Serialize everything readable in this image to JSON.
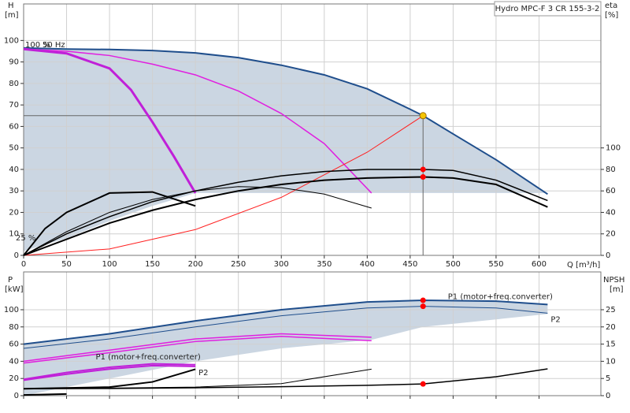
{
  "chart_data": [
    {
      "type": "line",
      "product": "Hydro MPC-F 3 CR 155-3-2",
      "y_label": "H",
      "y_unit": "[m]",
      "y2_label": "eta",
      "y2_unit": "[%]",
      "x_label": "Q [m³/h]",
      "annotations": [
        "100 %",
        "50 Hz",
        "25 %"
      ],
      "xlim": [
        0,
        672
      ],
      "xticks": [
        0,
        50,
        100,
        150,
        200,
        250,
        300,
        350,
        400,
        450,
        500,
        550,
        600
      ],
      "show_xtick_labels": true,
      "ylim": [
        0,
        117
      ],
      "yticks": [
        0,
        10,
        20,
        30,
        40,
        50,
        60,
        70,
        80,
        90,
        100
      ],
      "y2lim": [
        0,
        234
      ],
      "y2ticks": [
        0,
        20,
        40,
        60,
        80,
        100
      ],
      "grid": true,
      "shade_color": "#cbd6e2",
      "shade": {
        "upper_series": 0,
        "x": [
          0,
          50,
          100,
          150,
          200,
          610
        ],
        "values": [
          2,
          8,
          16,
          23,
          29,
          29
        ]
      },
      "duty_point": {
        "x": 465,
        "y": 65,
        "color": "#f5c400"
      },
      "series": [
        {
          "color": "#1f4e8c",
          "width": 2,
          "x": [
            0,
            50,
            100,
            150,
            200,
            250,
            300,
            350,
            400,
            450,
            465,
            500,
            550,
            610
          ],
          "values": [
            96.5,
            96,
            95.8,
            95.3,
            94.2,
            92,
            88.5,
            84,
            77.5,
            68,
            65,
            56.5,
            44.5,
            28.5
          ]
        },
        {
          "color": "#e020e0",
          "width": 1.5,
          "x": [
            0,
            50,
            100,
            150,
            200,
            250,
            300,
            350,
            405
          ],
          "values": [
            96,
            95,
            93,
            89,
            84,
            76.5,
            66,
            52,
            29
          ]
        },
        {
          "color": "#c020d8",
          "width": 3,
          "x": [
            0,
            50,
            100,
            125,
            150,
            175,
            200
          ],
          "values": [
            96,
            94,
            87,
            77,
            62,
            46,
            29
          ]
        },
        {
          "color": "#ff2020",
          "width": 1,
          "x": [
            0,
            100,
            200,
            300,
            400,
            465
          ],
          "values": [
            0,
            3,
            12,
            27,
            48,
            65
          ]
        },
        {
          "color": "#000000",
          "width": 1.5,
          "axis": "y2",
          "x": [
            0,
            50,
            100,
            150,
            200,
            250,
            300,
            350,
            400,
            465,
            500,
            550,
            610
          ],
          "values": [
            0,
            20,
            36,
            50,
            60,
            68,
            74,
            78,
            80,
            80,
            79,
            70,
            51
          ],
          "points": [
            9
          ]
        },
        {
          "color": "#000000",
          "width": 2,
          "axis": "y2",
          "x": [
            0,
            50,
            100,
            150,
            200,
            250,
            300,
            350,
            400,
            465,
            500,
            550,
            610
          ],
          "values": [
            0,
            15,
            30,
            42,
            52,
            60,
            66,
            70,
            72,
            73,
            72,
            66,
            45
          ],
          "points": [
            9
          ]
        },
        {
          "color": "#000000",
          "width": 1,
          "axis": "y2",
          "x": [
            0,
            50,
            100,
            150,
            200,
            250,
            300,
            350,
            405
          ],
          "values": [
            0,
            22,
            40,
            52,
            60,
            64,
            63,
            57,
            44
          ]
        },
        {
          "color": "#000000",
          "width": 2,
          "axis": "y2",
          "x": [
            0,
            25,
            50,
            100,
            150,
            200
          ],
          "values": [
            0,
            25,
            40,
            58,
            59,
            46
          ]
        }
      ]
    },
    {
      "type": "line",
      "y_label": "P",
      "y_unit": "[kW]",
      "y2_label": "NPSH",
      "y2_unit": "[m]",
      "xlim": [
        0,
        672
      ],
      "xticks": [
        0,
        50,
        100,
        150,
        200,
        250,
        300,
        350,
        400,
        450,
        500,
        550,
        600
      ],
      "show_xtick_labels": false,
      "ylim": [
        0,
        144
      ],
      "yticks": [
        0,
        20,
        40,
        60,
        80,
        100
      ],
      "y2lim": [
        0,
        36
      ],
      "y2ticks": [
        0,
        5,
        10,
        15,
        20,
        25
      ],
      "grid": true,
      "shade_color": "#cbd6e2",
      "shade": {
        "upper_series": 0,
        "x": [
          0,
          100,
          200,
          300,
          405,
          465,
          610
        ],
        "values": [
          0,
          20,
          40,
          55,
          65,
          80,
          95
        ]
      },
      "series": [
        {
          "color": "#1f4e8c",
          "width": 2,
          "x": [
            0,
            100,
            200,
            300,
            400,
            465,
            550,
            610
          ],
          "values": [
            60,
            72,
            87,
            100,
            109,
            111,
            110,
            106
          ],
          "points": [
            5
          ],
          "label": "P1 (motor+freq.converter)"
        },
        {
          "color": "#1f4e8c",
          "width": 1,
          "x": [
            0,
            100,
            200,
            300,
            400,
            465,
            550,
            610
          ],
          "values": [
            55,
            66,
            80,
            93,
            102,
            104,
            102,
            96
          ],
          "points": [
            5
          ],
          "label": "P2"
        },
        {
          "color": "#e020e0",
          "width": 1.5,
          "x": [
            0,
            100,
            200,
            300,
            405
          ],
          "values": [
            40,
            53,
            66,
            72,
            68
          ]
        },
        {
          "color": "#e020e0",
          "width": 1.5,
          "x": [
            0,
            100,
            200,
            300,
            405
          ],
          "values": [
            38,
            50,
            63,
            69,
            64
          ]
        },
        {
          "color": "#c020d8",
          "width": 2,
          "x": [
            0,
            50,
            100,
            150,
            200
          ],
          "values": [
            19,
            27,
            33,
            37,
            36
          ],
          "label": "P1 (motor+freq.converter)"
        },
        {
          "color": "#c020d8",
          "width": 2,
          "x": [
            0,
            50,
            100,
            150,
            200
          ],
          "values": [
            18,
            25,
            31,
            35,
            34
          ],
          "label": "P2"
        },
        {
          "color": "#000000",
          "width": 1.5,
          "axis": "y2",
          "x": [
            0,
            100,
            200,
            300,
            400,
            465,
            550,
            610
          ],
          "values": [
            2,
            2.1,
            2.3,
            2.6,
            3,
            3.4,
            5.5,
            7.8
          ],
          "points": [
            5
          ]
        },
        {
          "color": "#000000",
          "width": 1,
          "axis": "y2",
          "x": [
            0,
            100,
            200,
            300,
            405
          ],
          "values": [
            2,
            2.2,
            2.5,
            3.5,
            7.7
          ]
        },
        {
          "color": "#000000",
          "width": 2,
          "axis": "y2",
          "x": [
            0,
            100,
            150,
            200
          ],
          "values": [
            2,
            2.5,
            4,
            7.7
          ]
        },
        {
          "color": "#000000",
          "width": 2,
          "axis": "y2",
          "x": [
            0,
            50
          ],
          "values": [
            0.2,
            0.5
          ]
        }
      ]
    }
  ]
}
